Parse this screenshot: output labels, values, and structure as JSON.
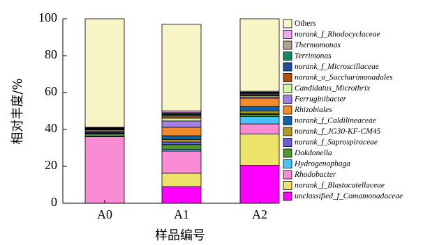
{
  "chart_data": {
    "type": "bar",
    "stacked": true,
    "title": "",
    "xlabel": "样品编号",
    "ylabel": "相对丰度/%",
    "ylim": [
      0,
      100
    ],
    "yticks": [
      "0",
      "20",
      "40",
      "60",
      "80",
      "100"
    ],
    "categories": [
      "A0",
      "A1",
      "A2"
    ],
    "legend_position": "right",
    "series": [
      {
        "name": "unclassified_f_Comamonadaceae",
        "color": "#ff00ff",
        "values": [
          0,
          9,
          20.5
        ]
      },
      {
        "name": "norank_f_Blastocatellaceae",
        "color": "#eee36a",
        "values": [
          0,
          7.3,
          17
        ]
      },
      {
        "name": "Rhodobacter",
        "color": "#f98cd5",
        "values": [
          36,
          12,
          5.5
        ]
      },
      {
        "name": "Hydrogenophaga",
        "color": "#48c2f9",
        "values": [
          0.3,
          1,
          4
        ]
      },
      {
        "name": "Dokdonella",
        "color": "#4f9a2c",
        "values": [
          1.2,
          2.5,
          1.2
        ]
      },
      {
        "name": "norank_f_Saprospiraceae",
        "color": "#6a5fe0",
        "values": [
          0.4,
          1.4,
          0.5
        ]
      },
      {
        "name": "norank_f_JG30-KF-CM45",
        "color": "#b59a1e",
        "values": [
          0.3,
          1.4,
          1.3
        ]
      },
      {
        "name": "norank_f_Caldilineaceae",
        "color": "#0f63a8",
        "values": [
          0.8,
          2,
          2.5
        ]
      },
      {
        "name": "Rhizobiales",
        "color": "#f28b2a",
        "values": [
          0.7,
          4.6,
          4.5
        ]
      },
      {
        "name": "Ferruginibacter",
        "color": "#a57fe6",
        "values": [
          0.2,
          3.4,
          0.7
        ]
      },
      {
        "name": "Candidatus_Microthrix",
        "color": "#d6f59e",
        "values": [
          0.3,
          1.5,
          0.6
        ]
      },
      {
        "name": "norank_o_Saccharimonadales",
        "color": "#b0520d",
        "values": [
          0.3,
          1.2,
          0.5
        ]
      },
      {
        "name": "norank_f_Microscillaceae",
        "color": "#1f4f9c",
        "values": [
          0.2,
          0.8,
          0.8
        ]
      },
      {
        "name": "Terrimonas",
        "color": "#0d8a62",
        "values": [
          0.1,
          0.6,
          0.3
        ]
      },
      {
        "name": "Thermomonas",
        "color": "#aaa48c",
        "values": [
          0.2,
          0.4,
          0.3
        ]
      },
      {
        "name": "norank_f_Rhodocyclaceae",
        "color": "#f0a6f3",
        "values": [
          0.2,
          1,
          0.5
        ]
      },
      {
        "name": "Others",
        "color": "#f7f4c6",
        "values": [
          58.8,
          46.9,
          39.3
        ]
      }
    ]
  }
}
